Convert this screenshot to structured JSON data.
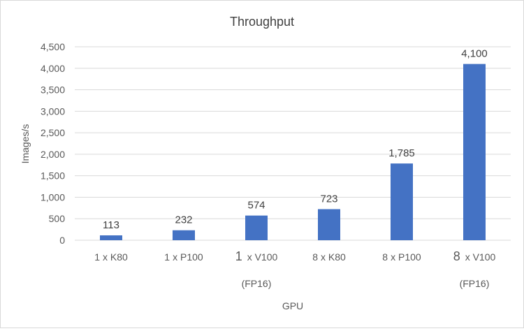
{
  "chart_data": {
    "type": "bar",
    "title": "Throughput",
    "xlabel": "GPU",
    "ylabel": "Images/s",
    "ylim": [
      0,
      4500
    ],
    "y_ticks": [
      "0",
      "500",
      "1,000",
      "1,500",
      "2,000",
      "2,500",
      "3,000",
      "3,500",
      "4,000",
      "4,500"
    ],
    "grid": true,
    "legend": "none",
    "bar_color": "#4472c4",
    "categories": [
      {
        "count": "1",
        "gpu": "x K80",
        "sub": ""
      },
      {
        "count": "1",
        "gpu": "x P100",
        "sub": ""
      },
      {
        "count": "1",
        "gpu": "x V100",
        "sub": "(FP16)"
      },
      {
        "count": "8",
        "gpu": "x K80",
        "sub": ""
      },
      {
        "count": "8",
        "gpu": "x P100",
        "sub": ""
      },
      {
        "count": "8",
        "gpu": "x V100",
        "sub": "(FP16)"
      }
    ],
    "values": [
      113,
      232,
      574,
      723,
      1785,
      4100
    ],
    "data_labels": [
      "113",
      "232",
      "574",
      "723",
      "1,785",
      "4,100"
    ]
  }
}
